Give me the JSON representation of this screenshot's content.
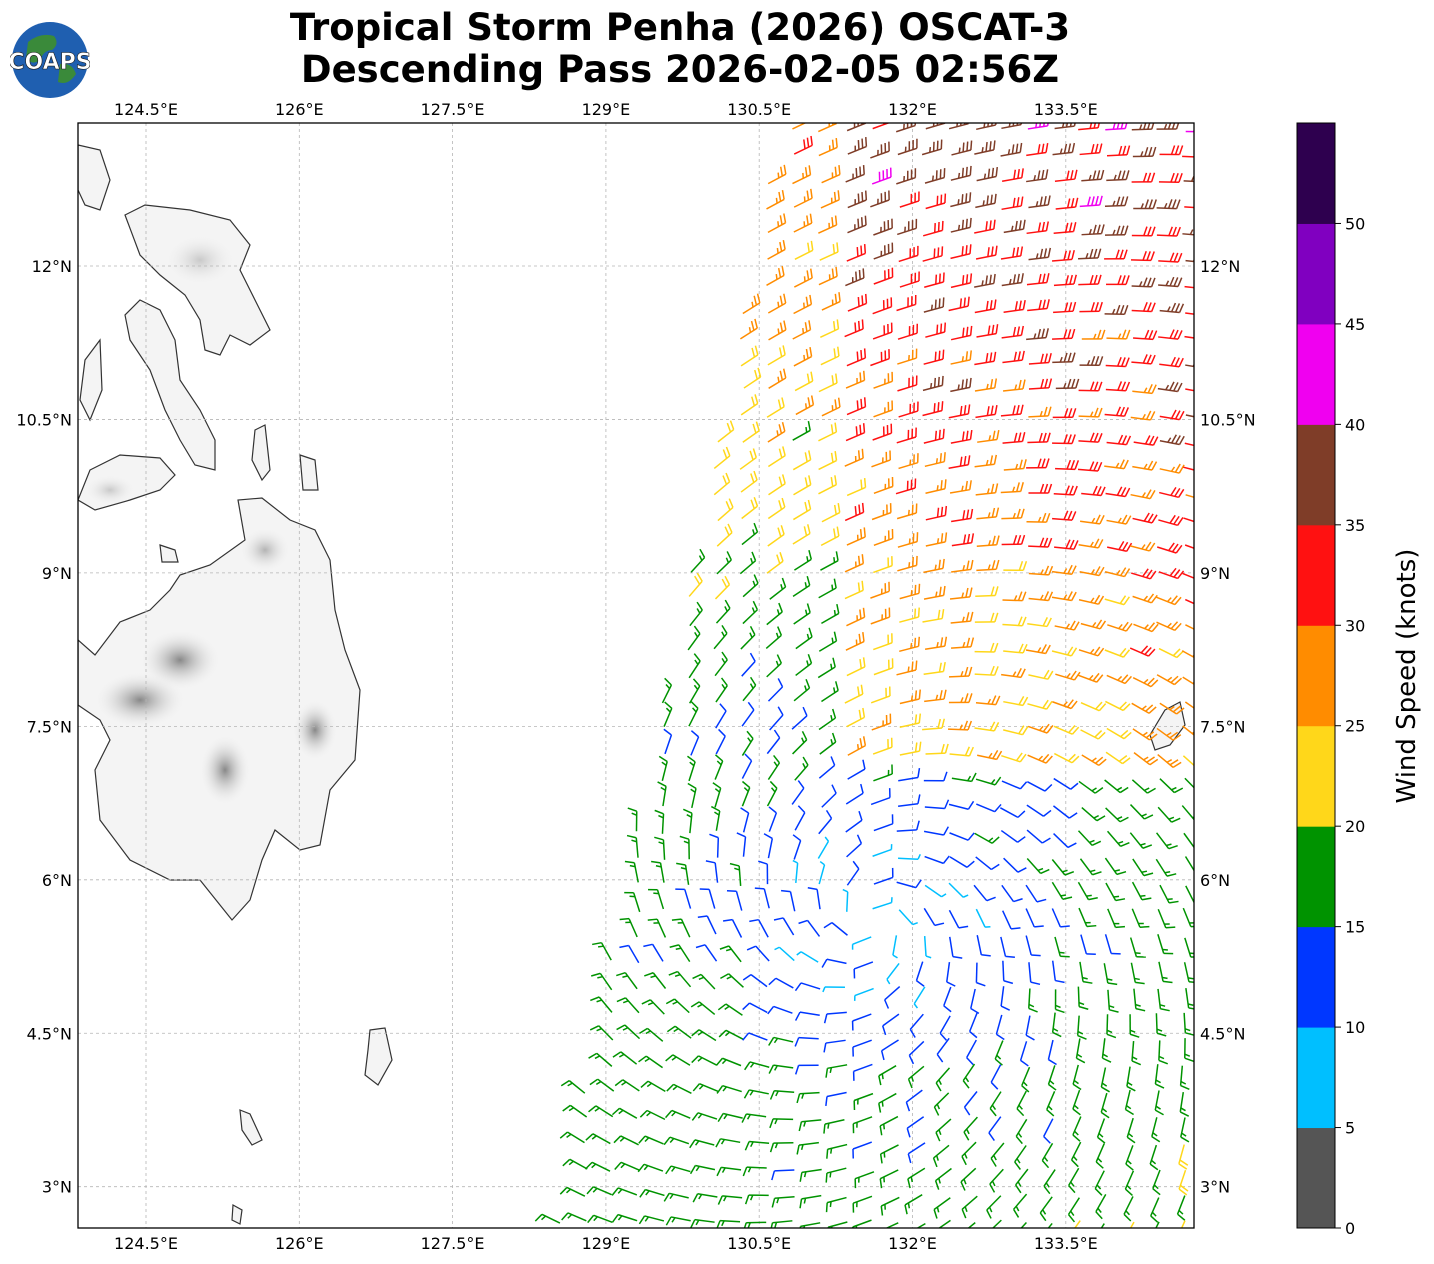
{
  "header": {
    "title_line1": "Tropical Storm Penha (2026) OSCAT-3",
    "title_line2": "Descending Pass 2026-02-05 02:56Z",
    "logo_text": "COAPS"
  },
  "map": {
    "lon_labels": [
      "124.5°E",
      "126°E",
      "127.5°E",
      "129°E",
      "130.5°E",
      "132°E",
      "133.5°E"
    ],
    "lat_labels": [
      "12°N",
      "10.5°N",
      "9°N",
      "7.5°N",
      "6°N",
      "4.5°N",
      "3°N"
    ],
    "storm_center": {
      "lon": 131.6,
      "lat": 5.6
    },
    "swath_edge_lon": 129.0
  },
  "colorbar": {
    "label": "Wind Speed (knots)",
    "ticks": [
      "0",
      "5",
      "10",
      "15",
      "20",
      "25",
      "30",
      "35",
      "40",
      "45",
      "50"
    ],
    "bins": [
      {
        "range": "0-5",
        "color": "#555555"
      },
      {
        "range": "5-10",
        "color": "#00BFFF"
      },
      {
        "range": "10-15",
        "color": "#0037FF"
      },
      {
        "range": "15-20",
        "color": "#009300"
      },
      {
        "range": "20-25",
        "color": "#FFD71A"
      },
      {
        "range": "25-30",
        "color": "#FF8C00"
      },
      {
        "range": "30-35",
        "color": "#FF1111"
      },
      {
        "range": "35-40",
        "color": "#7F3D28"
      },
      {
        "range": "40-45",
        "color": "#F000F0"
      },
      {
        "range": "45-50",
        "color": "#8000C0"
      },
      {
        "range": "50+",
        "color": "#2E004F"
      }
    ]
  }
}
